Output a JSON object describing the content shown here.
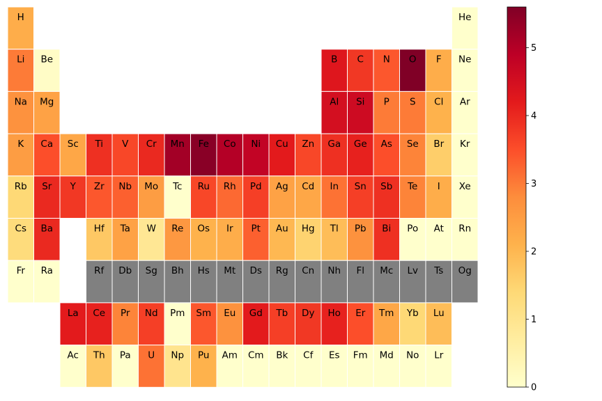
{
  "chart_data": {
    "type": "heatmap",
    "colormap": "YlOrRd",
    "vmin": 0,
    "vmax": 5.6,
    "missing_color": "#808080",
    "colorbar_ticks": [
      "0",
      "1",
      "2",
      "3",
      "4",
      "5"
    ],
    "elements": [
      {
        "symbol": "H",
        "row": 0,
        "col": 0,
        "value": 2.2
      },
      {
        "symbol": "He",
        "row": 0,
        "col": 17,
        "value": 0
      },
      {
        "symbol": "Li",
        "row": 1,
        "col": 0,
        "value": 3.0
      },
      {
        "symbol": "Be",
        "row": 1,
        "col": 1,
        "value": 0.1
      },
      {
        "symbol": "B",
        "row": 1,
        "col": 12,
        "value": 4.3
      },
      {
        "symbol": "C",
        "row": 1,
        "col": 13,
        "value": 3.8
      },
      {
        "symbol": "N",
        "row": 1,
        "col": 14,
        "value": 3.4
      },
      {
        "symbol": "O",
        "row": 1,
        "col": 15,
        "value": 5.6
      },
      {
        "symbol": "F",
        "row": 1,
        "col": 16,
        "value": 2.2
      },
      {
        "symbol": "Ne",
        "row": 1,
        "col": 17,
        "value": 0
      },
      {
        "symbol": "Na",
        "row": 2,
        "col": 0,
        "value": 2.7
      },
      {
        "symbol": "Mg",
        "row": 2,
        "col": 1,
        "value": 2.4
      },
      {
        "symbol": "Al",
        "row": 2,
        "col": 12,
        "value": 4.5
      },
      {
        "symbol": "Si",
        "row": 2,
        "col": 13,
        "value": 4.6
      },
      {
        "symbol": "P",
        "row": 2,
        "col": 14,
        "value": 3.0
      },
      {
        "symbol": "S",
        "row": 2,
        "col": 15,
        "value": 3.0
      },
      {
        "symbol": "Cl",
        "row": 2,
        "col": 16,
        "value": 2.1
      },
      {
        "symbol": "Ar",
        "row": 2,
        "col": 17,
        "value": 0
      },
      {
        "symbol": "K",
        "row": 3,
        "col": 0,
        "value": 2.5
      },
      {
        "symbol": "Ca",
        "row": 3,
        "col": 1,
        "value": 3.5
      },
      {
        "symbol": "Sc",
        "row": 3,
        "col": 2,
        "value": 2.3
      },
      {
        "symbol": "Ti",
        "row": 3,
        "col": 3,
        "value": 3.9
      },
      {
        "symbol": "V",
        "row": 3,
        "col": 4,
        "value": 3.6
      },
      {
        "symbol": "Cr",
        "row": 3,
        "col": 5,
        "value": 4.0
      },
      {
        "symbol": "Mn",
        "row": 3,
        "col": 6,
        "value": 5.2
      },
      {
        "symbol": "Fe",
        "row": 3,
        "col": 7,
        "value": 5.5
      },
      {
        "symbol": "Co",
        "row": 3,
        "col": 8,
        "value": 5.0
      },
      {
        "symbol": "Ni",
        "row": 3,
        "col": 9,
        "value": 4.8
      },
      {
        "symbol": "Cu",
        "row": 3,
        "col": 10,
        "value": 4.2
      },
      {
        "symbol": "Zn",
        "row": 3,
        "col": 11,
        "value": 3.6
      },
      {
        "symbol": "Ga",
        "row": 3,
        "col": 12,
        "value": 3.9
      },
      {
        "symbol": "Ge",
        "row": 3,
        "col": 13,
        "value": 4.1
      },
      {
        "symbol": "As",
        "row": 3,
        "col": 14,
        "value": 3.5
      },
      {
        "symbol": "Se",
        "row": 3,
        "col": 15,
        "value": 2.9
      },
      {
        "symbol": "Br",
        "row": 3,
        "col": 16,
        "value": 1.6
      },
      {
        "symbol": "Kr",
        "row": 3,
        "col": 17,
        "value": 0
      },
      {
        "symbol": "Rb",
        "row": 4,
        "col": 0,
        "value": 1.4
      },
      {
        "symbol": "Sr",
        "row": 4,
        "col": 1,
        "value": 4.0
      },
      {
        "symbol": "Y",
        "row": 4,
        "col": 2,
        "value": 3.8
      },
      {
        "symbol": "Zr",
        "row": 4,
        "col": 3,
        "value": 3.4
      },
      {
        "symbol": "Nb",
        "row": 4,
        "col": 4,
        "value": 3.3
      },
      {
        "symbol": "Mo",
        "row": 4,
        "col": 5,
        "value": 2.5
      },
      {
        "symbol": "Tc",
        "row": 4,
        "col": 6,
        "value": 0
      },
      {
        "symbol": "Ru",
        "row": 4,
        "col": 7,
        "value": 3.6
      },
      {
        "symbol": "Rh",
        "row": 4,
        "col": 8,
        "value": 3.2
      },
      {
        "symbol": "Pd",
        "row": 4,
        "col": 9,
        "value": 3.7
      },
      {
        "symbol": "Ag",
        "row": 4,
        "col": 10,
        "value": 2.4
      },
      {
        "symbol": "Cd",
        "row": 4,
        "col": 11,
        "value": 2.3
      },
      {
        "symbol": "In",
        "row": 4,
        "col": 12,
        "value": 3.1
      },
      {
        "symbol": "Sn",
        "row": 4,
        "col": 13,
        "value": 3.7
      },
      {
        "symbol": "Sb",
        "row": 4,
        "col": 14,
        "value": 3.9
      },
      {
        "symbol": "Te",
        "row": 4,
        "col": 15,
        "value": 2.9
      },
      {
        "symbol": "I",
        "row": 4,
        "col": 16,
        "value": 2.2
      },
      {
        "symbol": "Xe",
        "row": 4,
        "col": 17,
        "value": 0
      },
      {
        "symbol": "Cs",
        "row": 5,
        "col": 0,
        "value": 1.3
      },
      {
        "symbol": "Ba",
        "row": 5,
        "col": 1,
        "value": 4.0
      },
      {
        "symbol": "Hf",
        "row": 5,
        "col": 3,
        "value": 1.7
      },
      {
        "symbol": "Ta",
        "row": 5,
        "col": 4,
        "value": 2.4
      },
      {
        "symbol": "W",
        "row": 5,
        "col": 5,
        "value": 0.9
      },
      {
        "symbol": "Re",
        "row": 5,
        "col": 6,
        "value": 2.6
      },
      {
        "symbol": "Os",
        "row": 5,
        "col": 7,
        "value": 2.1
      },
      {
        "symbol": "Ir",
        "row": 5,
        "col": 8,
        "value": 2.2
      },
      {
        "symbol": "Pt",
        "row": 5,
        "col": 9,
        "value": 3.3
      },
      {
        "symbol": "Au",
        "row": 5,
        "col": 10,
        "value": 2.0
      },
      {
        "symbol": "Hg",
        "row": 5,
        "col": 11,
        "value": 1.5
      },
      {
        "symbol": "Tl",
        "row": 5,
        "col": 12,
        "value": 1.9
      },
      {
        "symbol": "Pb",
        "row": 5,
        "col": 13,
        "value": 2.7
      },
      {
        "symbol": "Bi",
        "row": 5,
        "col": 14,
        "value": 3.9
      },
      {
        "symbol": "Po",
        "row": 5,
        "col": 15,
        "value": 0
      },
      {
        "symbol": "At",
        "row": 5,
        "col": 16,
        "value": 0
      },
      {
        "symbol": "Rn",
        "row": 5,
        "col": 17,
        "value": 0
      },
      {
        "symbol": "Fr",
        "row": 6,
        "col": 0,
        "value": 0
      },
      {
        "symbol": "Ra",
        "row": 6,
        "col": 1,
        "value": 0
      },
      {
        "symbol": "Rf",
        "row": 6,
        "col": 3,
        "value": null
      },
      {
        "symbol": "Db",
        "row": 6,
        "col": 4,
        "value": null
      },
      {
        "symbol": "Sg",
        "row": 6,
        "col": 5,
        "value": null
      },
      {
        "symbol": "Bh",
        "row": 6,
        "col": 6,
        "value": null
      },
      {
        "symbol": "Hs",
        "row": 6,
        "col": 7,
        "value": null
      },
      {
        "symbol": "Mt",
        "row": 6,
        "col": 8,
        "value": null
      },
      {
        "symbol": "Ds",
        "row": 6,
        "col": 9,
        "value": null
      },
      {
        "symbol": "Rg",
        "row": 6,
        "col": 10,
        "value": null
      },
      {
        "symbol": "Cn",
        "row": 6,
        "col": 11,
        "value": null
      },
      {
        "symbol": "Nh",
        "row": 6,
        "col": 12,
        "value": null
      },
      {
        "symbol": "Fl",
        "row": 6,
        "col": 13,
        "value": null
      },
      {
        "symbol": "Mc",
        "row": 6,
        "col": 14,
        "value": null
      },
      {
        "symbol": "Lv",
        "row": 6,
        "col": 15,
        "value": null
      },
      {
        "symbol": "Ts",
        "row": 6,
        "col": 16,
        "value": null
      },
      {
        "symbol": "Og",
        "row": 6,
        "col": 17,
        "value": null
      },
      {
        "symbol": "La",
        "row": 7,
        "col": 2,
        "value": 4.2
      },
      {
        "symbol": "Ce",
        "row": 7,
        "col": 3,
        "value": 4.1
      },
      {
        "symbol": "Pr",
        "row": 7,
        "col": 4,
        "value": 2.9
      },
      {
        "symbol": "Nd",
        "row": 7,
        "col": 5,
        "value": 3.7
      },
      {
        "symbol": "Pm",
        "row": 7,
        "col": 6,
        "value": 0
      },
      {
        "symbol": "Sm",
        "row": 7,
        "col": 7,
        "value": 3.4
      },
      {
        "symbol": "Eu",
        "row": 7,
        "col": 8,
        "value": 2.7
      },
      {
        "symbol": "Gd",
        "row": 7,
        "col": 9,
        "value": 4.2
      },
      {
        "symbol": "Tb",
        "row": 7,
        "col": 10,
        "value": 3.7
      },
      {
        "symbol": "Dy",
        "row": 7,
        "col": 11,
        "value": 3.8
      },
      {
        "symbol": "Ho",
        "row": 7,
        "col": 12,
        "value": 4.1
      },
      {
        "symbol": "Er",
        "row": 7,
        "col": 13,
        "value": 3.5
      },
      {
        "symbol": "Tm",
        "row": 7,
        "col": 14,
        "value": 2.3
      },
      {
        "symbol": "Yb",
        "row": 7,
        "col": 15,
        "value": 1.4
      },
      {
        "symbol": "Lu",
        "row": 7,
        "col": 16,
        "value": 1.9
      },
      {
        "symbol": "Ac",
        "row": 8,
        "col": 2,
        "value": 0
      },
      {
        "symbol": "Th",
        "row": 8,
        "col": 3,
        "value": 1.7
      },
      {
        "symbol": "Pa",
        "row": 8,
        "col": 4,
        "value": 0
      },
      {
        "symbol": "U",
        "row": 8,
        "col": 5,
        "value": 3.1
      },
      {
        "symbol": "Np",
        "row": 8,
        "col": 6,
        "value": 1.0
      },
      {
        "symbol": "Pu",
        "row": 8,
        "col": 7,
        "value": 2.1
      },
      {
        "symbol": "Am",
        "row": 8,
        "col": 8,
        "value": 0
      },
      {
        "symbol": "Cm",
        "row": 8,
        "col": 9,
        "value": 0
      },
      {
        "symbol": "Bk",
        "row": 8,
        "col": 10,
        "value": 0
      },
      {
        "symbol": "Cf",
        "row": 8,
        "col": 11,
        "value": 0
      },
      {
        "symbol": "Es",
        "row": 8,
        "col": 12,
        "value": 0
      },
      {
        "symbol": "Fm",
        "row": 8,
        "col": 13,
        "value": 0
      },
      {
        "symbol": "Md",
        "row": 8,
        "col": 14,
        "value": 0
      },
      {
        "symbol": "No",
        "row": 8,
        "col": 15,
        "value": 0
      },
      {
        "symbol": "Lr",
        "row": 8,
        "col": 16,
        "value": 0
      }
    ]
  }
}
